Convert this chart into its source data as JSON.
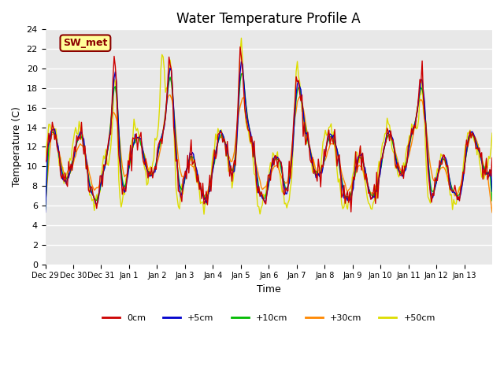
{
  "title": "Water Temperature Profile A",
  "xlabel": "Time",
  "ylabel": "Temperature (C)",
  "ylim": [
    0,
    24
  ],
  "n_days": 16,
  "plot_bg": "#e8e8e8",
  "annotation_text": "SW_met",
  "annotation_color": "#8b0000",
  "annotation_bg": "#ffff99",
  "legend_entries": [
    "0cm",
    "+5cm",
    "+10cm",
    "+30cm",
    "+50cm"
  ],
  "line_colors": [
    "#cc0000",
    "#0000cc",
    "#00bb00",
    "#ff8800",
    "#dddd00"
  ],
  "xtick_labels": [
    "Dec 29",
    "Dec 30",
    "Dec 31",
    "Jan 1",
    "Jan 2",
    "Jan 3",
    "Jan 4",
    "Jan 5",
    "Jan 6",
    "Jan 7",
    "Jan 8",
    "Jan 9",
    "Jan 10",
    "Jan 11",
    "Jan 12",
    "Jan 13"
  ],
  "ytick_labels": [
    0,
    2,
    4,
    6,
    8,
    10,
    12,
    14,
    16,
    18,
    20,
    22,
    24
  ]
}
